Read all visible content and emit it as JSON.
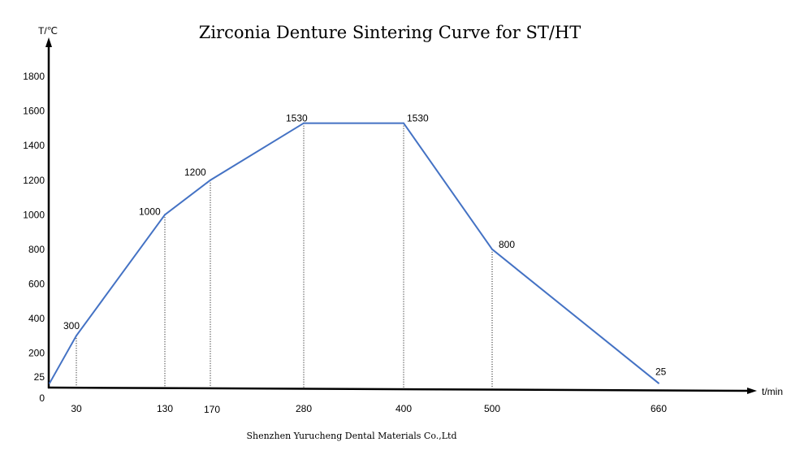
{
  "chart_data": {
    "type": "line",
    "title": "Zirconia Denture Sintering Curve for ST/HT",
    "xlabel": "t/min",
    "ylabel": "T/℃",
    "footer": "Shenzhen Yurucheng Dental Materials Co.,Ltd",
    "x_ticks": [
      30,
      130,
      170,
      280,
      400,
      500,
      660
    ],
    "y_ticks": [
      0,
      25,
      200,
      400,
      600,
      800,
      1000,
      1200,
      1400,
      1600,
      1800
    ],
    "ylim": [
      0,
      1900
    ],
    "xlim": [
      0,
      780
    ],
    "grid": false,
    "line_color": "#4472c4",
    "points": [
      {
        "x": 0,
        "y": 25,
        "label": ""
      },
      {
        "x": 30,
        "y": 300,
        "label": "300"
      },
      {
        "x": 130,
        "y": 1000,
        "label": "1000"
      },
      {
        "x": 170,
        "y": 1200,
        "label": "1200"
      },
      {
        "x": 280,
        "y": 1530,
        "label": "1530"
      },
      {
        "x": 400,
        "y": 1530,
        "label": "1530"
      },
      {
        "x": 500,
        "y": 800,
        "label": "800"
      },
      {
        "x": 660,
        "y": 25,
        "label": "25"
      }
    ]
  }
}
